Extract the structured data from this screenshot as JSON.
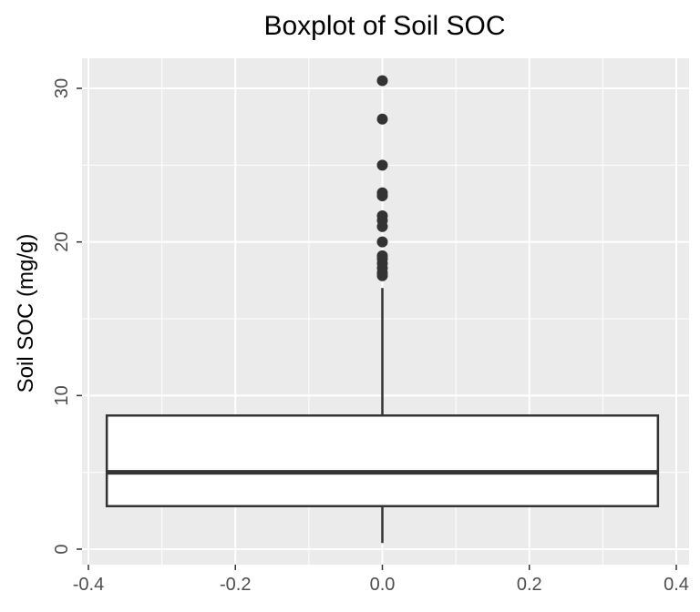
{
  "chart_data": {
    "type": "boxplot",
    "title": "Boxplot of Soil SOC",
    "xlabel": "",
    "ylabel": "Soil SOC (mg/g)",
    "xlim": [
      -0.4,
      0.4
    ],
    "ylim": [
      0,
      32
    ],
    "x_ticks": [
      "-0.4",
      "-0.2",
      "0.0",
      "0.2",
      "0.4"
    ],
    "x_tick_values": [
      -0.4,
      -0.2,
      0.0,
      0.2,
      0.4
    ],
    "y_ticks": [
      "0",
      "10",
      "20",
      "30"
    ],
    "y_tick_values": [
      0,
      10,
      20,
      30
    ],
    "grid": true,
    "box": {
      "x_center": 0.0,
      "x_left": -0.375,
      "x_right": 0.375,
      "whisker_low": 0.4,
      "q1": 2.8,
      "median": 5.0,
      "q3": 8.7,
      "whisker_high": 17.0
    },
    "outliers": [
      17.8,
      18.0,
      18.3,
      18.6,
      18.9,
      19.1,
      20.0,
      21.0,
      21.4,
      21.7,
      23.0,
      23.2,
      25.0,
      28.0,
      30.5
    ],
    "colors": {
      "panel_bg": "#ebebeb",
      "grid_major": "#ffffff",
      "box_fill": "#ffffff",
      "box_stroke": "#333333",
      "outlier": "#333333"
    }
  }
}
